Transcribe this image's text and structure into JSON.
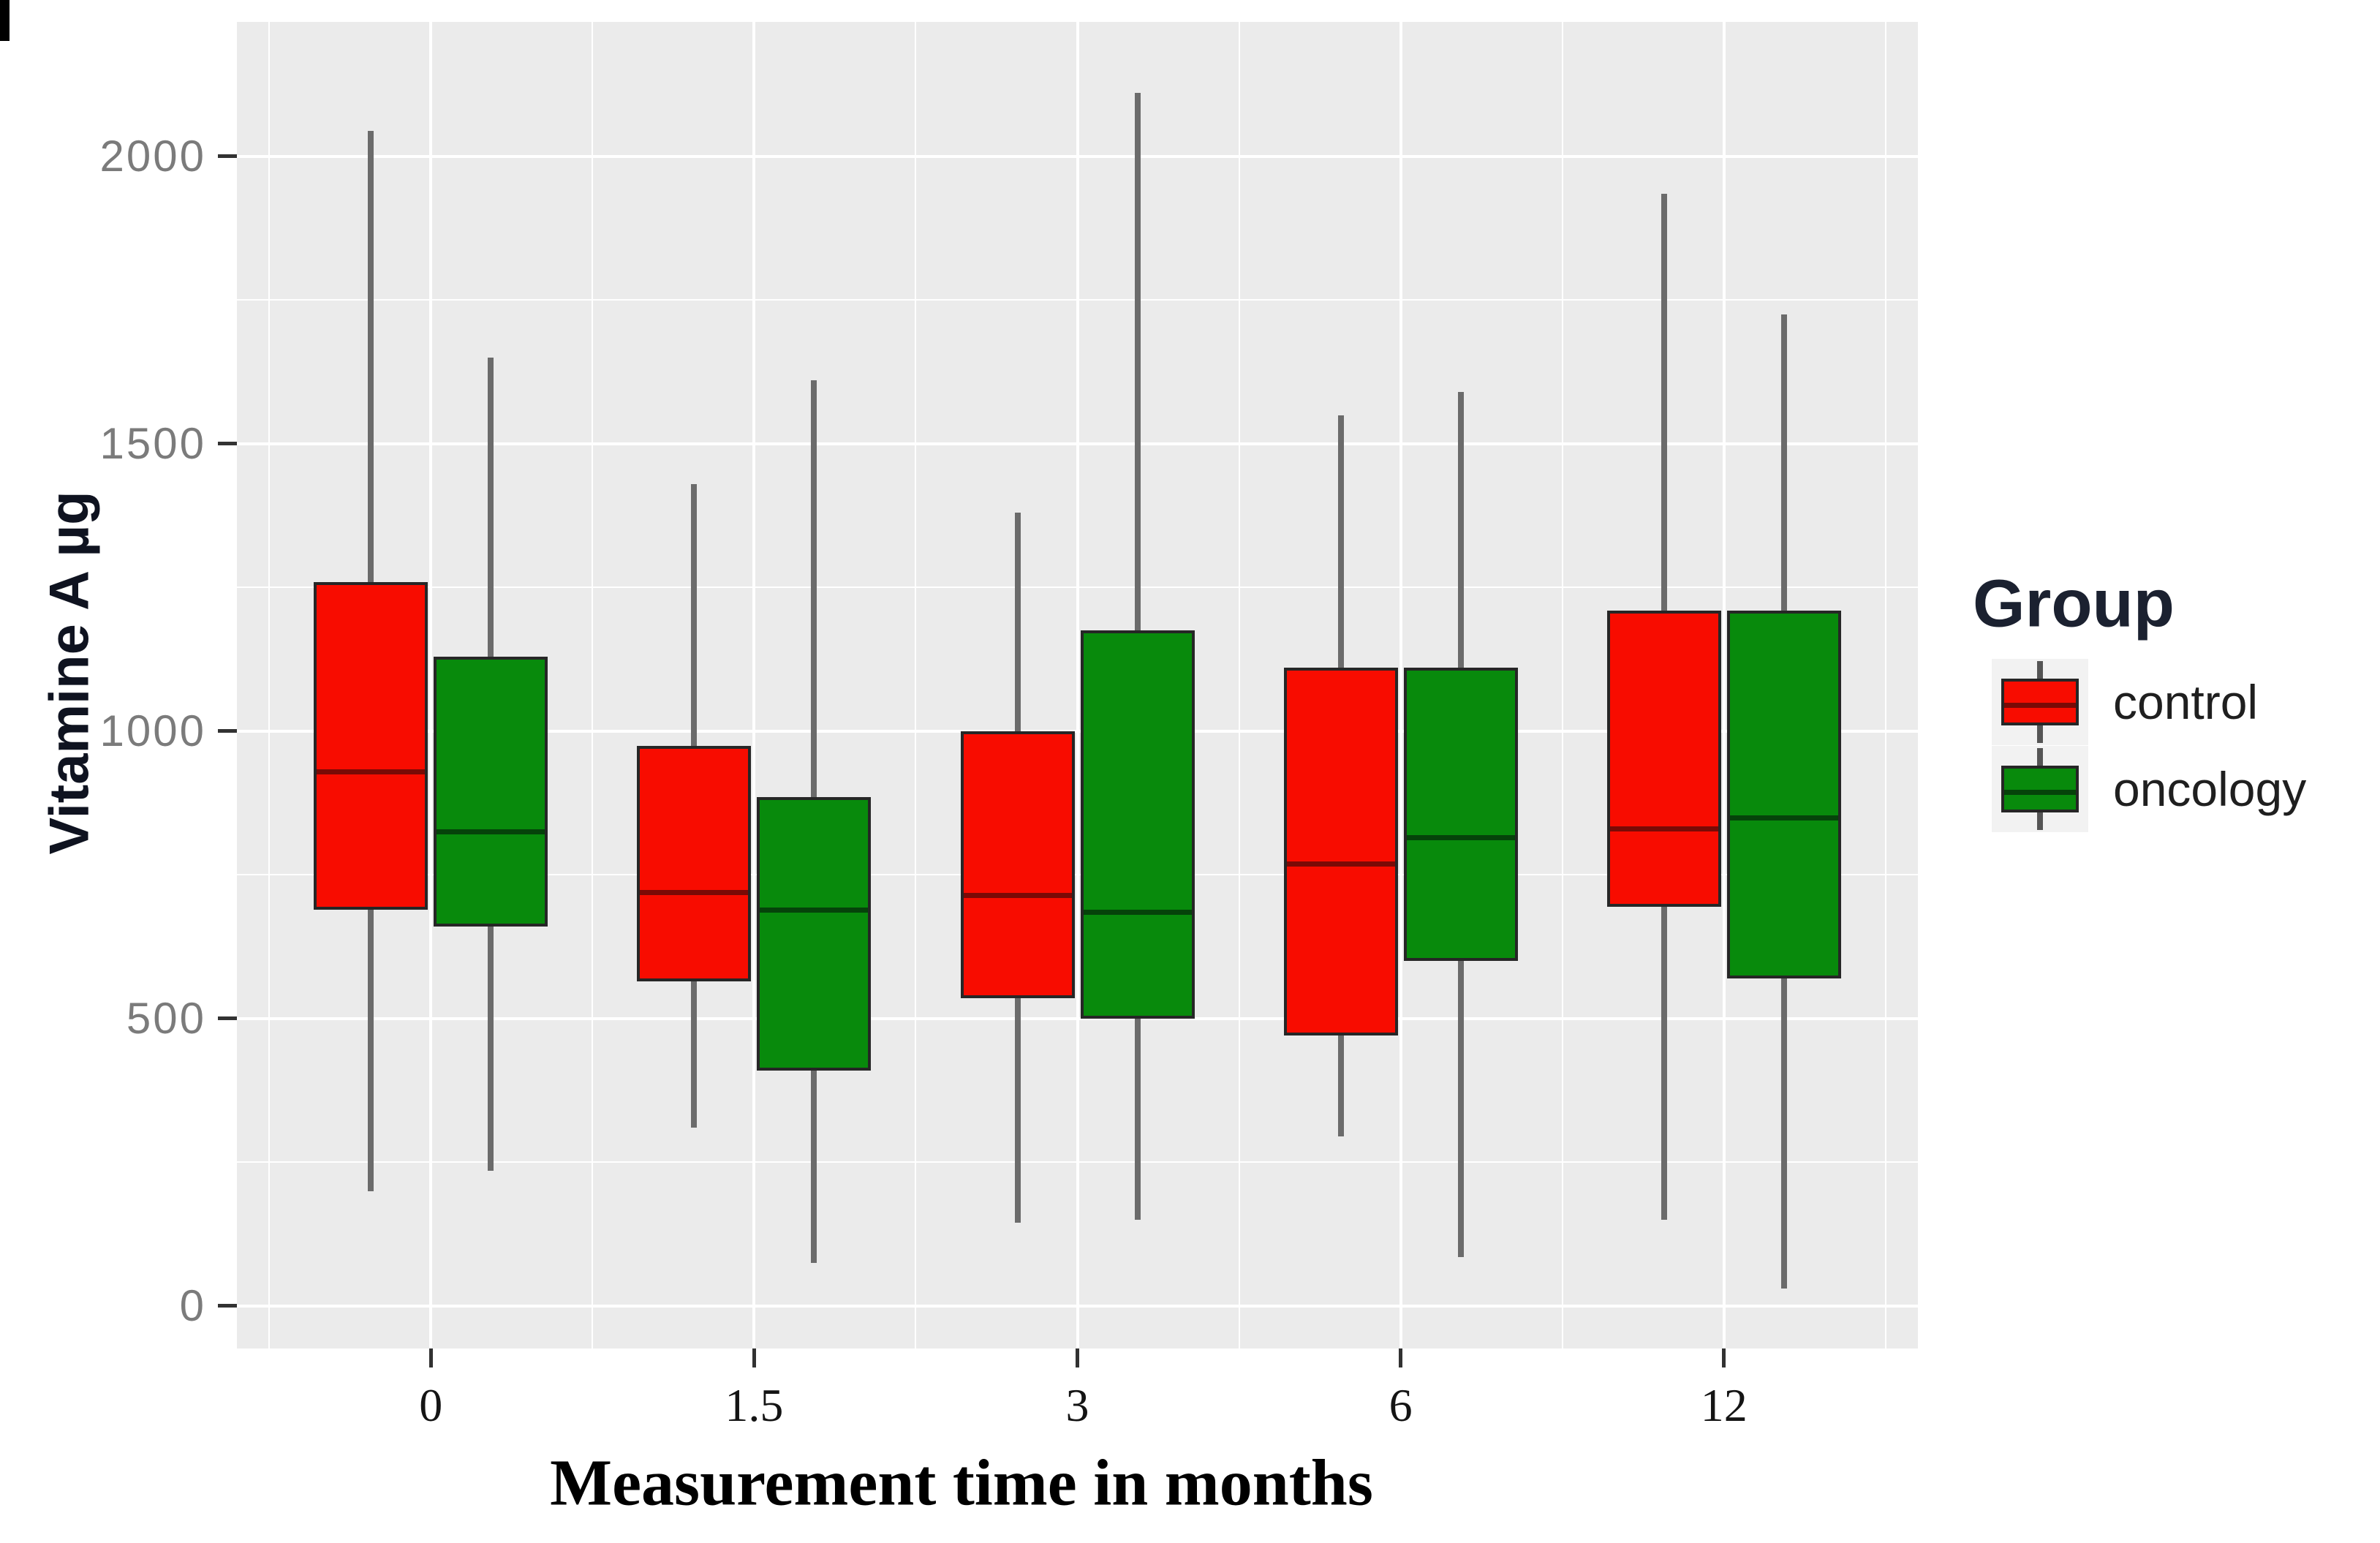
{
  "chart_data": {
    "type": "boxplot",
    "title": "",
    "xlabel": "Measurement time in months",
    "ylabel": "Vitamine A µg",
    "legend_title": "Group",
    "legend_position": "right",
    "categories": [
      "0",
      "1.5",
      "3",
      "6",
      "12"
    ],
    "ylim": [
      -74,
      2234
    ],
    "yticks": [
      0,
      500,
      1000,
      1500,
      2000
    ],
    "ytick_labels": [
      "0",
      "500",
      "1000",
      "1500",
      "2000"
    ],
    "yminor": [
      250,
      750,
      1250,
      1750
    ],
    "grid": true,
    "panel_bg": "#ebebeb",
    "grid_color": "#ffffff",
    "whisker_color": "#6b6b6b",
    "box_border_color": "#262626",
    "series": [
      {
        "name": "control",
        "fill": "#f80c00",
        "median_color": "#7a0a06",
        "boxes": [
          {
            "category": "0",
            "whisker_low": 200,
            "q1": 690,
            "median": 930,
            "q3": 1260,
            "whisker_high": 2045
          },
          {
            "category": "1.5",
            "whisker_low": 310,
            "q1": 565,
            "median": 720,
            "q3": 975,
            "whisker_high": 1430
          },
          {
            "category": "3",
            "whisker_low": 145,
            "q1": 535,
            "median": 715,
            "q3": 1000,
            "whisker_high": 1380
          },
          {
            "category": "6",
            "whisker_low": 295,
            "q1": 470,
            "median": 770,
            "q3": 1110,
            "whisker_high": 1550
          },
          {
            "category": "12",
            "whisker_low": 150,
            "q1": 695,
            "median": 830,
            "q3": 1210,
            "whisker_high": 1935
          }
        ]
      },
      {
        "name": "oncology",
        "fill": "#088a0c",
        "median_color": "#05430a",
        "boxes": [
          {
            "category": "0",
            "whisker_low": 235,
            "q1": 660,
            "median": 825,
            "q3": 1130,
            "whisker_high": 1650
          },
          {
            "category": "1.5",
            "whisker_low": 75,
            "q1": 410,
            "median": 690,
            "q3": 885,
            "whisker_high": 1610
          },
          {
            "category": "3",
            "whisker_low": 150,
            "q1": 500,
            "median": 685,
            "q3": 1175,
            "whisker_high": 2110
          },
          {
            "category": "6",
            "whisker_low": 85,
            "q1": 600,
            "median": 815,
            "q3": 1110,
            "whisker_high": 1590
          },
          {
            "category": "12",
            "whisker_low": 30,
            "q1": 570,
            "median": 850,
            "q3": 1210,
            "whisker_high": 1725
          }
        ]
      }
    ]
  }
}
